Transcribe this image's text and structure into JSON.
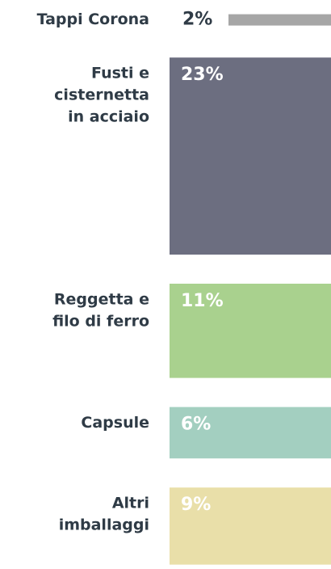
{
  "chart_data": {
    "type": "bar",
    "categories": [
      [
        "Tappi Corona"
      ],
      [
        "Fusti e",
        "cisternetta",
        "in acciaio"
      ],
      [
        "Reggetta e",
        "filo di ferro"
      ],
      [
        "Capsule"
      ],
      [
        "Altri",
        "imballaggi"
      ]
    ],
    "values": [
      2,
      23,
      11,
      6,
      9
    ],
    "value_labels": [
      "2%",
      "23%",
      "11%",
      "6%",
      "9%"
    ],
    "colors": [
      "#a6a6a6",
      "#6c6e80",
      "#a9d18e",
      "#a3cfc0",
      "#e9dfa9"
    ]
  }
}
